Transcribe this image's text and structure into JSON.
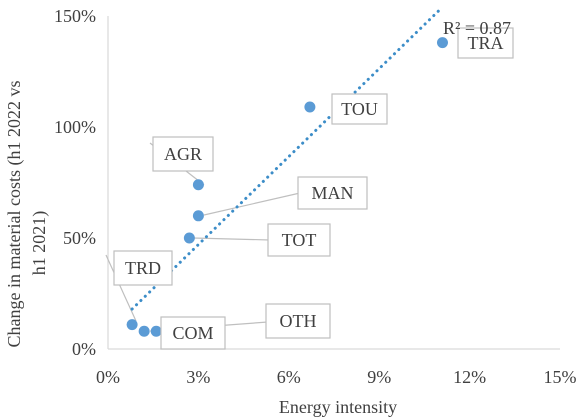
{
  "chart_data": {
    "type": "scatter",
    "xlabel": "Energy intensity",
    "ylabel": "Change  in material costs (h1 2022 vs h1 2021)",
    "ylabel_lines": [
      "Change  in material costs (h1 2022 vs",
      "h1 2021)"
    ],
    "xlim": [
      0,
      15
    ],
    "ylim": [
      0,
      150
    ],
    "x_ticks": [
      0,
      3,
      6,
      9,
      12,
      15
    ],
    "x_tick_labels": [
      "0%",
      "3%",
      "6%",
      "9%",
      "12%",
      "15%"
    ],
    "y_ticks": [
      0,
      50,
      100,
      150
    ],
    "y_tick_labels": [
      "0%",
      "50%",
      "100%",
      "150%"
    ],
    "grid": false,
    "points": [
      {
        "label": "TRA",
        "x": 11.1,
        "y": 138
      },
      {
        "label": "TOU",
        "x": 6.7,
        "y": 109
      },
      {
        "label": "AGR",
        "x": 3.0,
        "y": 74
      },
      {
        "label": "MAN",
        "x": 3.0,
        "y": 60
      },
      {
        "label": "TOT",
        "x": 2.7,
        "y": 50
      },
      {
        "label": "TRD",
        "x": 0.8,
        "y": 11
      },
      {
        "label": "COM",
        "x": 1.2,
        "y": 8
      },
      {
        "label": "OTH",
        "x": 1.6,
        "y": 8
      }
    ],
    "trendline": {
      "type": "linear",
      "r_squared_label": "R² = 0.87",
      "x_range": [
        0.8,
        11.1
      ],
      "y_range": [
        18,
        154
      ]
    },
    "colors": {
      "marker": "#5b9bd5",
      "trend": "#3c8dc8",
      "axis": "#d9d9d9",
      "text": "#404040",
      "callout": "#bfbfbf"
    }
  }
}
